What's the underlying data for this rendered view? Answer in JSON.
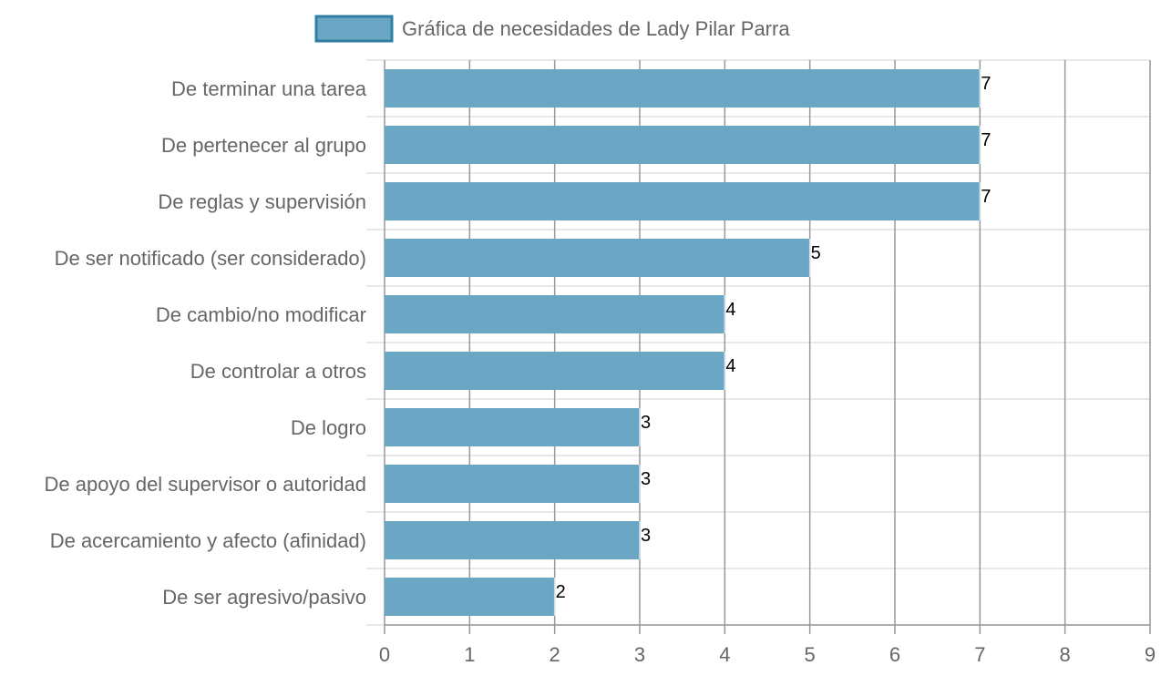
{
  "chart_data": {
    "type": "bar",
    "orientation": "horizontal",
    "categories": [
      "De terminar una tarea",
      "De pertenecer al grupo",
      "De reglas y supervisión",
      "De ser notificado (ser considerado)",
      "De cambio/no modificar",
      "De controlar a otros",
      "De logro",
      "De apoyo del supervisor o autoridad",
      "De acercamiento y afecto (afinidad)",
      "De ser agresivo/pasivo"
    ],
    "series": [
      {
        "name": "Gráfica de necesidades de Lady Pilar Parra",
        "values": [
          7,
          7,
          7,
          5,
          4,
          4,
          3,
          3,
          3,
          2
        ]
      }
    ],
    "data_labels": [
      "7",
      "7",
      "7",
      "5",
      "4",
      "4",
      "3",
      "3",
      "3",
      "2"
    ],
    "xlim": [
      0,
      9
    ],
    "x_ticks": [
      "0",
      "1",
      "2",
      "3",
      "4",
      "5",
      "6",
      "7",
      "8",
      "9"
    ],
    "grid": true,
    "legend_position": "top",
    "colors": {
      "bar_fill": "#6ca6c5",
      "bar_border": "#2f7ea3",
      "legend_fill": "#6ca6c5",
      "legend_border": "#2f7ea3",
      "grid_vertical": "#999999",
      "grid_horizontal": "#e0e0e0",
      "text": "#666666",
      "data_label": "#000000"
    }
  }
}
